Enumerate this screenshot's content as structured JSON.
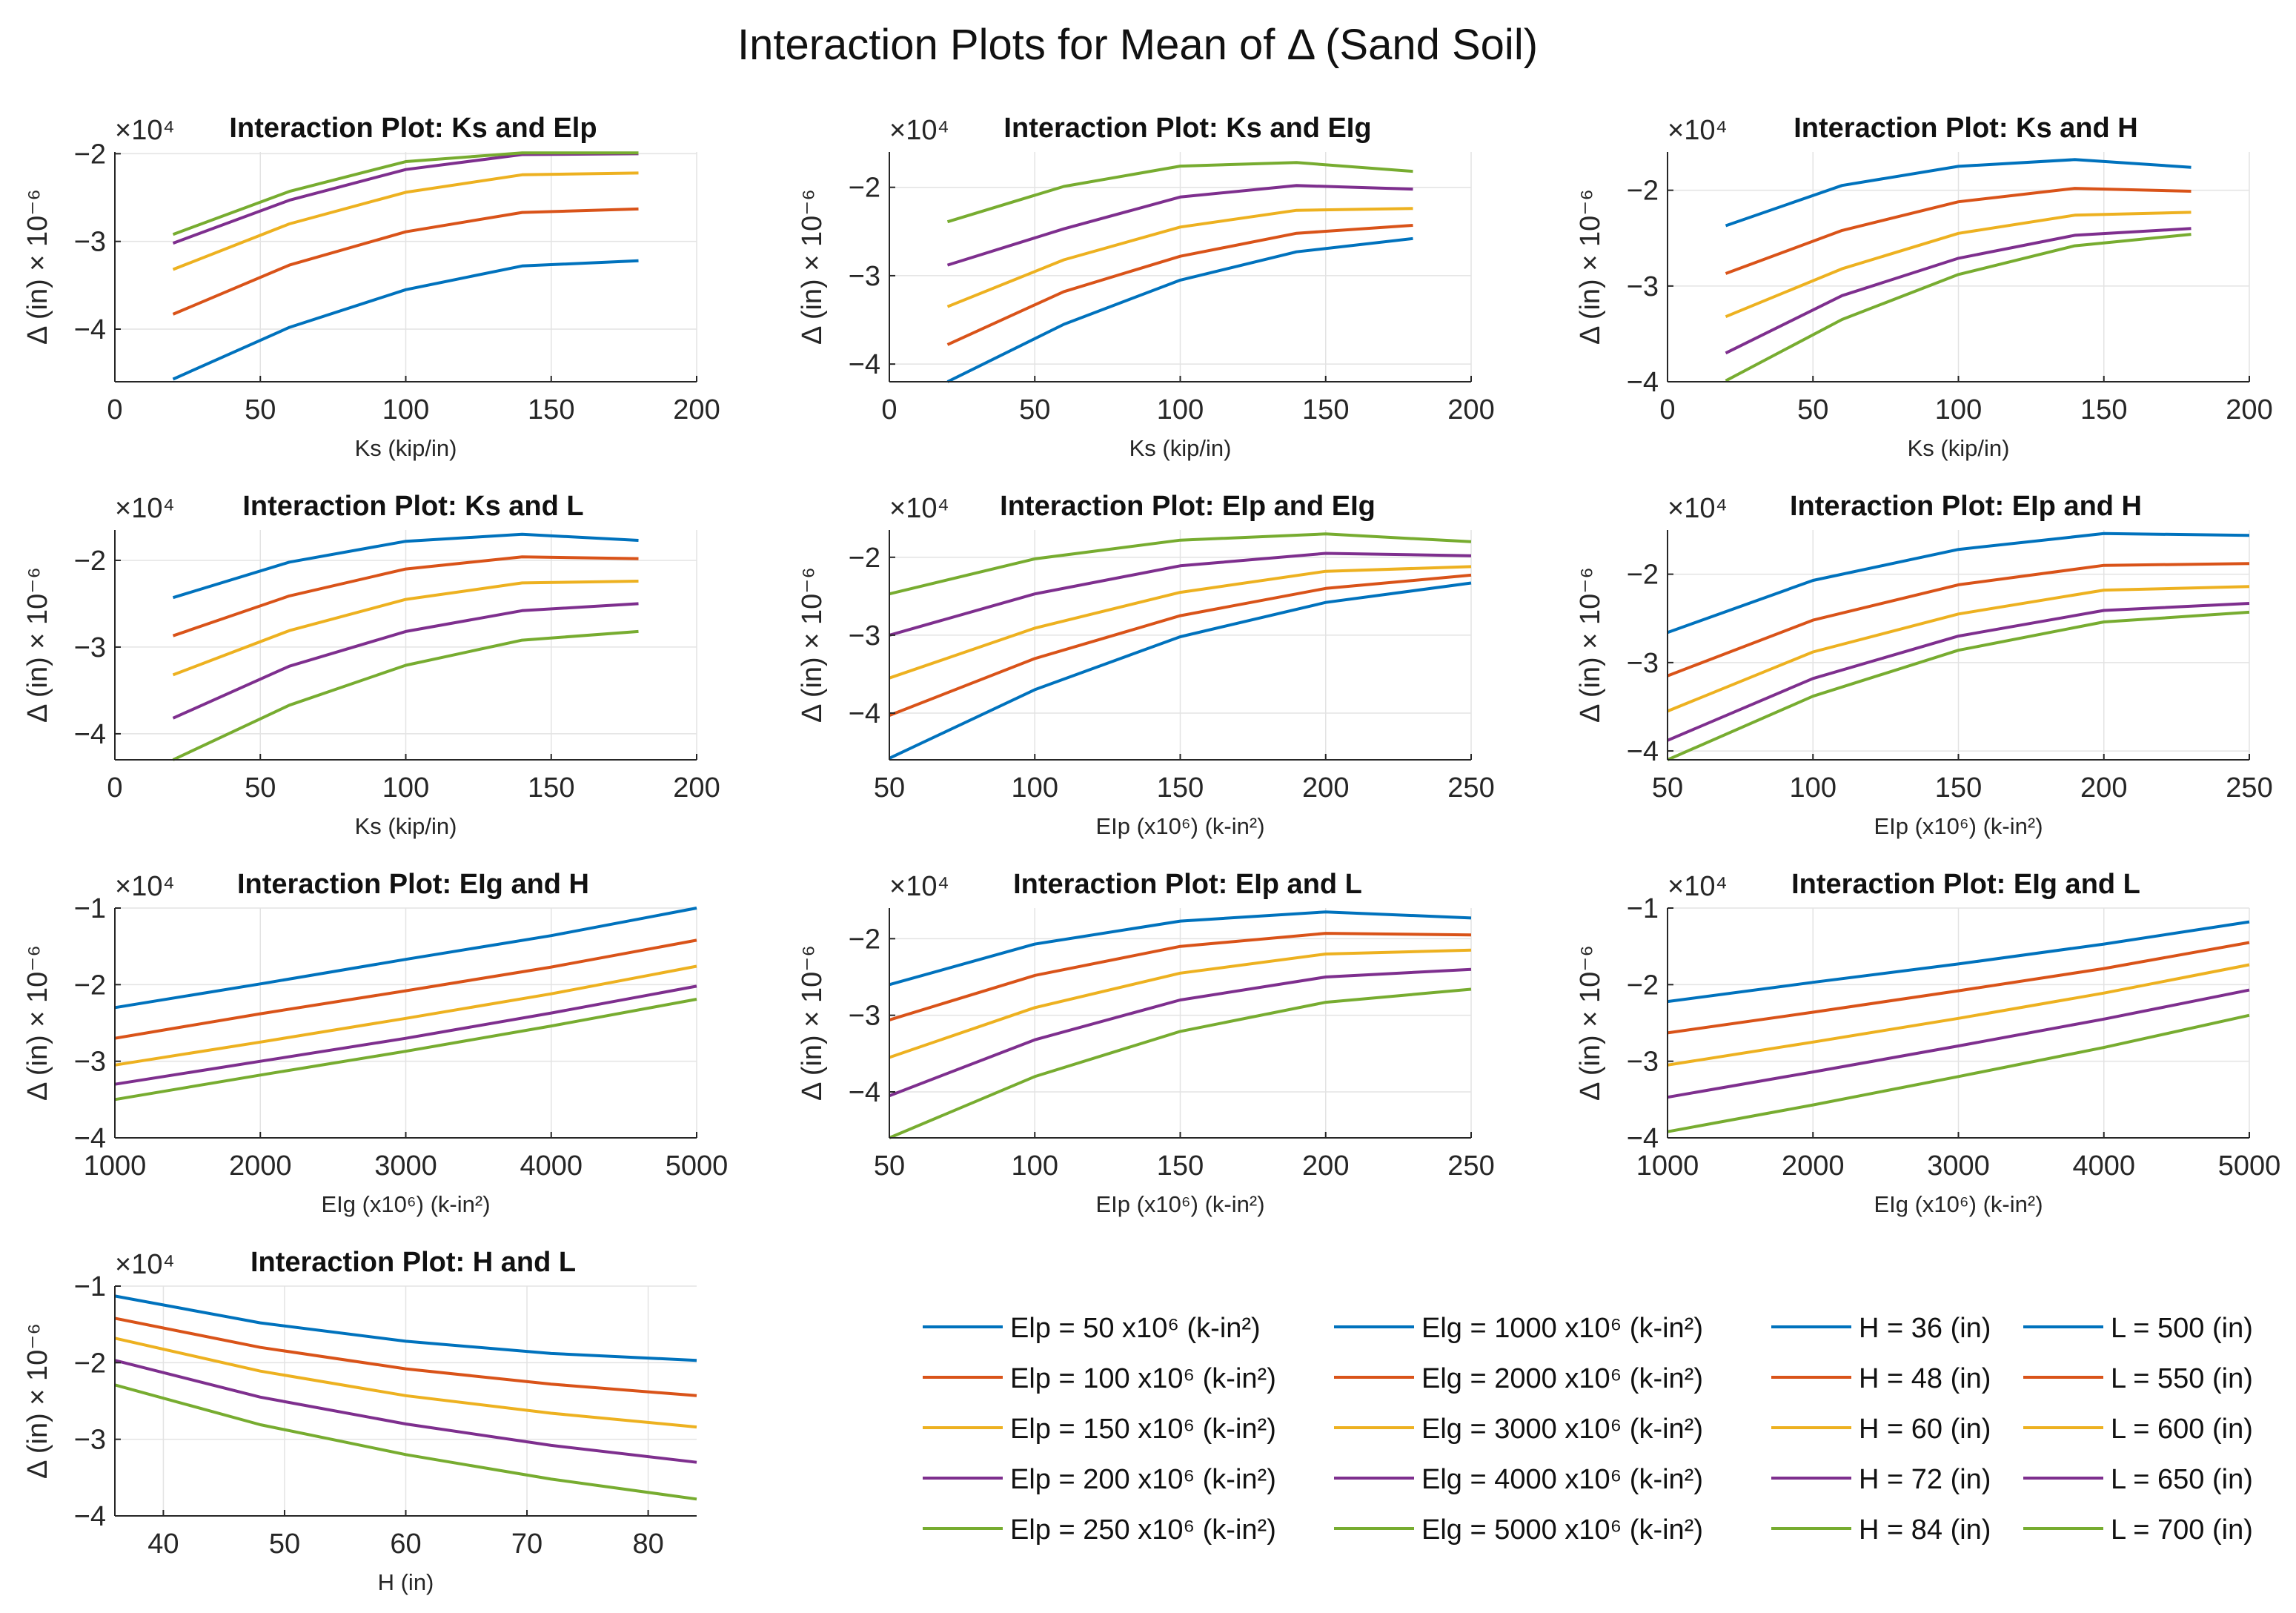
{
  "figure_title": "Interaction Plots for Mean of Δ (Sand Soil)",
  "colors": [
    "#0072BD",
    "#D95319",
    "#EDB120",
    "#7E2F8E",
    "#77AC30"
  ],
  "chart_data": [
    {
      "type": "line",
      "title": "Interaction Plot: Ks and Elp",
      "xlabel": "Ks (kip/in)",
      "ylabel": "Δ (in) × 10⁻⁶",
      "exponent_label": "×10⁴",
      "xlim": [
        0,
        200
      ],
      "ylim": [
        -4.6,
        -1.98
      ],
      "xticks": [
        0,
        50,
        100,
        150,
        200
      ],
      "xtick_labels": [
        "0",
        "50",
        "100",
        "150",
        "200"
      ],
      "yticks": [
        -4,
        -3,
        -2
      ],
      "ytick_labels": [
        "−4",
        "−3",
        "−2"
      ],
      "x": [
        20,
        60,
        100,
        140,
        180
      ],
      "series": [
        {
          "values": [
            -4.57,
            -3.98,
            -3.55,
            -3.28,
            -3.22
          ]
        },
        {
          "values": [
            -3.83,
            -3.27,
            -2.89,
            -2.67,
            -2.63
          ]
        },
        {
          "values": [
            -3.32,
            -2.8,
            -2.44,
            -2.24,
            -2.22
          ]
        },
        {
          "values": [
            -3.02,
            -2.53,
            -2.18,
            -2.01,
            -2.0
          ]
        },
        {
          "values": [
            -2.92,
            -2.43,
            -2.09,
            -1.99,
            -1.99
          ]
        }
      ]
    },
    {
      "type": "line",
      "title": "Interaction Plot: Ks and EIg",
      "xlabel": "Ks (kip/in)",
      "ylabel": "Δ (in) × 10⁻⁶",
      "exponent_label": "×10⁴",
      "xlim": [
        0,
        200
      ],
      "ylim": [
        -4.2,
        -1.6
      ],
      "xticks": [
        0,
        50,
        100,
        150,
        200
      ],
      "xtick_labels": [
        "0",
        "50",
        "100",
        "150",
        "200"
      ],
      "yticks": [
        -4,
        -3,
        -2
      ],
      "ytick_labels": [
        "−4",
        "−3",
        "−2"
      ],
      "x": [
        20,
        60,
        100,
        140,
        180
      ],
      "series": [
        {
          "values": [
            -4.2,
            -3.55,
            -3.05,
            -2.73,
            -2.58
          ]
        },
        {
          "values": [
            -3.78,
            -3.18,
            -2.78,
            -2.52,
            -2.43
          ]
        },
        {
          "values": [
            -3.35,
            -2.82,
            -2.45,
            -2.26,
            -2.24
          ]
        },
        {
          "values": [
            -2.88,
            -2.47,
            -2.11,
            -1.98,
            -2.02
          ]
        },
        {
          "values": [
            -2.39,
            -1.99,
            -1.76,
            -1.72,
            -1.82
          ]
        }
      ]
    },
    {
      "type": "line",
      "title": "Interaction Plot: Ks and H",
      "xlabel": "Ks (kip/in)",
      "ylabel": "Δ (in) × 10⁻⁶",
      "exponent_label": "×10⁴",
      "xlim": [
        0,
        200
      ],
      "ylim": [
        -4.0,
        -1.6
      ],
      "xticks": [
        0,
        50,
        100,
        150,
        200
      ],
      "xtick_labels": [
        "0",
        "50",
        "100",
        "150",
        "200"
      ],
      "yticks": [
        -4,
        -3,
        -2
      ],
      "ytick_labels": [
        "−4",
        "−3",
        "−2"
      ],
      "x": [
        20,
        60,
        100,
        140,
        180
      ],
      "series": [
        {
          "values": [
            -2.37,
            -1.95,
            -1.75,
            -1.68,
            -1.76
          ]
        },
        {
          "values": [
            -2.87,
            -2.42,
            -2.12,
            -1.98,
            -2.01
          ]
        },
        {
          "values": [
            -3.32,
            -2.82,
            -2.45,
            -2.26,
            -2.23
          ]
        },
        {
          "values": [
            -3.7,
            -3.1,
            -2.71,
            -2.47,
            -2.4
          ]
        },
        {
          "values": [
            -3.99,
            -3.35,
            -2.88,
            -2.58,
            -2.46
          ]
        }
      ]
    },
    {
      "type": "line",
      "title": "Interaction Plot: Ks and L",
      "xlabel": "Ks (kip/in)",
      "ylabel": "Δ (in) × 10⁻⁶",
      "exponent_label": "×10⁴",
      "xlim": [
        0,
        200
      ],
      "ylim": [
        -4.3,
        -1.65
      ],
      "xticks": [
        0,
        50,
        100,
        150,
        200
      ],
      "xtick_labels": [
        "0",
        "50",
        "100",
        "150",
        "200"
      ],
      "yticks": [
        -4,
        -3,
        -2
      ],
      "ytick_labels": [
        "−4",
        "−3",
        "−2"
      ],
      "x": [
        20,
        60,
        100,
        140,
        180
      ],
      "series": [
        {
          "values": [
            -2.43,
            -2.02,
            -1.78,
            -1.7,
            -1.77
          ]
        },
        {
          "values": [
            -2.87,
            -2.41,
            -2.1,
            -1.96,
            -1.98
          ]
        },
        {
          "values": [
            -3.32,
            -2.81,
            -2.45,
            -2.26,
            -2.24
          ]
        },
        {
          "values": [
            -3.82,
            -3.22,
            -2.82,
            -2.58,
            -2.5
          ]
        },
        {
          "values": [
            -4.3,
            -3.67,
            -3.21,
            -2.92,
            -2.82
          ]
        }
      ]
    },
    {
      "type": "line",
      "title": "Interaction Plot: EIp and EIg",
      "xlabel": "EIp (x10⁶) (k-in²)",
      "ylabel": "Δ (in) × 10⁻⁶",
      "exponent_label": "×10⁴",
      "xlim": [
        50,
        250
      ],
      "ylim": [
        -4.6,
        -1.65
      ],
      "xticks": [
        50,
        100,
        150,
        200,
        250
      ],
      "xtick_labels": [
        "50",
        "100",
        "150",
        "200",
        "250"
      ],
      "yticks": [
        -4,
        -3,
        -2
      ],
      "ytick_labels": [
        "−4",
        "−3",
        "−2"
      ],
      "x": [
        50,
        100,
        150,
        200,
        250
      ],
      "series": [
        {
          "values": [
            -4.58,
            -3.7,
            -3.02,
            -2.58,
            -2.33
          ]
        },
        {
          "values": [
            -4.03,
            -3.3,
            -2.75,
            -2.4,
            -2.23
          ]
        },
        {
          "values": [
            -3.55,
            -2.91,
            -2.45,
            -2.18,
            -2.12
          ]
        },
        {
          "values": [
            -3.0,
            -2.47,
            -2.11,
            -1.95,
            -1.98
          ]
        },
        {
          "values": [
            -2.47,
            -2.02,
            -1.78,
            -1.7,
            -1.8
          ]
        }
      ]
    },
    {
      "type": "line",
      "title": "Interaction Plot: EIp and H",
      "xlabel": "EIp (x10⁶) (k-in²)",
      "ylabel": "Δ (in) × 10⁻⁶",
      "exponent_label": "×10⁴",
      "xlim": [
        50,
        250
      ],
      "ylim": [
        -4.1,
        -1.5
      ],
      "xticks": [
        50,
        100,
        150,
        200,
        250
      ],
      "xtick_labels": [
        "50",
        "100",
        "150",
        "200",
        "250"
      ],
      "yticks": [
        -4,
        -3,
        -2
      ],
      "ytick_labels": [
        "−4",
        "−3",
        "−2"
      ],
      "x": [
        50,
        100,
        150,
        200,
        250
      ],
      "series": [
        {
          "values": [
            -2.66,
            -2.07,
            -1.72,
            -1.54,
            -1.56
          ]
        },
        {
          "values": [
            -3.15,
            -2.52,
            -2.12,
            -1.9,
            -1.88
          ]
        },
        {
          "values": [
            -3.55,
            -2.88,
            -2.45,
            -2.18,
            -2.14
          ]
        },
        {
          "values": [
            -3.88,
            -3.18,
            -2.7,
            -2.41,
            -2.33
          ]
        },
        {
          "values": [
            -4.1,
            -3.38,
            -2.86,
            -2.54,
            -2.43
          ]
        }
      ]
    },
    {
      "type": "line",
      "title": "Interaction Plot: EIg and H",
      "xlabel": "EIg (x10⁶) (k-in²)",
      "ylabel": "Δ (in) × 10⁻⁶",
      "exponent_label": "×10⁴",
      "xlim": [
        1000,
        5000
      ],
      "ylim": [
        -4.0,
        -1.0
      ],
      "xticks": [
        1000,
        2000,
        3000,
        4000,
        5000
      ],
      "xtick_labels": [
        "1000",
        "2000",
        "3000",
        "4000",
        "5000"
      ],
      "yticks": [
        -4,
        -3,
        -2,
        -1
      ],
      "ytick_labels": [
        "−4",
        "−3",
        "−2",
        "−1"
      ],
      "x": [
        1000,
        2000,
        3000,
        4000,
        5000
      ],
      "series": [
        {
          "values": [
            -2.3,
            -1.99,
            -1.67,
            -1.36,
            -1.0
          ]
        },
        {
          "values": [
            -2.7,
            -2.38,
            -2.08,
            -1.77,
            -1.42
          ]
        },
        {
          "values": [
            -3.05,
            -2.75,
            -2.44,
            -2.12,
            -1.76
          ]
        },
        {
          "values": [
            -3.3,
            -3.0,
            -2.7,
            -2.37,
            -2.02
          ]
        },
        {
          "values": [
            -3.5,
            -3.18,
            -2.87,
            -2.54,
            -2.19
          ]
        }
      ]
    },
    {
      "type": "line",
      "title": "Interaction Plot: EIp and L",
      "xlabel": "EIp (x10⁶) (k-in²)",
      "ylabel": "Δ (in) × 10⁻⁶",
      "exponent_label": "×10⁴",
      "xlim": [
        50,
        250
      ],
      "ylim": [
        -4.6,
        -1.6
      ],
      "xticks": [
        50,
        100,
        150,
        200,
        250
      ],
      "xtick_labels": [
        "50",
        "100",
        "150",
        "200",
        "250"
      ],
      "yticks": [
        -4,
        -3,
        -2
      ],
      "ytick_labels": [
        "−4",
        "−3",
        "−2"
      ],
      "x": [
        50,
        100,
        150,
        200,
        250
      ],
      "series": [
        {
          "values": [
            -2.6,
            -2.07,
            -1.77,
            -1.65,
            -1.73
          ]
        },
        {
          "values": [
            -3.06,
            -2.48,
            -2.1,
            -1.93,
            -1.95
          ]
        },
        {
          "values": [
            -3.55,
            -2.9,
            -2.45,
            -2.2,
            -2.15
          ]
        },
        {
          "values": [
            -4.05,
            -3.32,
            -2.8,
            -2.5,
            -2.4
          ]
        },
        {
          "values": [
            -4.6,
            -3.8,
            -3.21,
            -2.83,
            -2.66
          ]
        }
      ]
    },
    {
      "type": "line",
      "title": "Interaction Plot: EIg and L",
      "xlabel": "EIg (x10⁶) (k-in²)",
      "ylabel": "Δ (in) × 10⁻⁶",
      "exponent_label": "×10⁴",
      "xlim": [
        1000,
        5000
      ],
      "ylim": [
        -4.0,
        -1.0
      ],
      "xticks": [
        1000,
        2000,
        3000,
        4000,
        5000
      ],
      "xtick_labels": [
        "1000",
        "2000",
        "3000",
        "4000",
        "5000"
      ],
      "yticks": [
        -4,
        -3,
        -2,
        -1
      ],
      "ytick_labels": [
        "−4",
        "−3",
        "−2",
        "−1"
      ],
      "x": [
        1000,
        2000,
        3000,
        4000,
        5000
      ],
      "series": [
        {
          "values": [
            -2.22,
            -1.97,
            -1.73,
            -1.47,
            -1.18
          ]
        },
        {
          "values": [
            -2.63,
            -2.36,
            -2.08,
            -1.79,
            -1.45
          ]
        },
        {
          "values": [
            -3.05,
            -2.75,
            -2.44,
            -2.11,
            -1.74
          ]
        },
        {
          "values": [
            -3.47,
            -3.14,
            -2.8,
            -2.45,
            -2.07
          ]
        },
        {
          "values": [
            -3.92,
            -3.57,
            -3.2,
            -2.82,
            -2.4
          ]
        }
      ]
    },
    {
      "type": "line",
      "title": "Interaction Plot: H and L",
      "xlabel": "H (in)",
      "ylabel": "Δ (in) × 10⁻⁶",
      "exponent_label": "×10⁴",
      "xlim": [
        36,
        84
      ],
      "ylim": [
        -4.0,
        -1.0
      ],
      "xticks": [
        40,
        50,
        60,
        70,
        80
      ],
      "xtick_labels": [
        "40",
        "50",
        "60",
        "70",
        "80"
      ],
      "yticks": [
        -4,
        -3,
        -2,
        -1
      ],
      "ytick_labels": [
        "−4",
        "−3",
        "−2",
        "−1"
      ],
      "x": [
        36,
        48,
        60,
        72,
        84
      ],
      "series": [
        {
          "values": [
            -1.13,
            -1.48,
            -1.72,
            -1.88,
            -1.97
          ]
        },
        {
          "values": [
            -1.42,
            -1.8,
            -2.08,
            -2.28,
            -2.43
          ]
        },
        {
          "values": [
            -1.68,
            -2.11,
            -2.43,
            -2.66,
            -2.84
          ]
        },
        {
          "values": [
            -1.97,
            -2.45,
            -2.8,
            -3.08,
            -3.3
          ]
        },
        {
          "values": [
            -2.29,
            -2.81,
            -3.2,
            -3.52,
            -3.78
          ]
        }
      ]
    }
  ],
  "legend": [
    [
      "Elp = 50 x10⁶ (k-in²)",
      "Elp = 100 x10⁶ (k-in²)",
      "Elp = 150 x10⁶ (k-in²)",
      "Elp = 200 x10⁶ (k-in²)",
      "Elp = 250 x10⁶ (k-in²)"
    ],
    [
      "Elg = 1000 x10⁶ (k-in²)",
      "Elg = 2000 x10⁶ (k-in²)",
      "Elg = 3000 x10⁶ (k-in²)",
      "Elg = 4000 x10⁶ (k-in²)",
      "Elg = 5000 x10⁶ (k-in²)"
    ],
    [
      "H = 36 (in)",
      "H = 48 (in)",
      "H = 60 (in)",
      "H = 72 (in)",
      "H = 84 (in)"
    ],
    [
      "L = 500 (in)",
      "L = 550 (in)",
      "L = 600 (in)",
      "L = 650 (in)",
      "L = 700 (in)"
    ]
  ]
}
